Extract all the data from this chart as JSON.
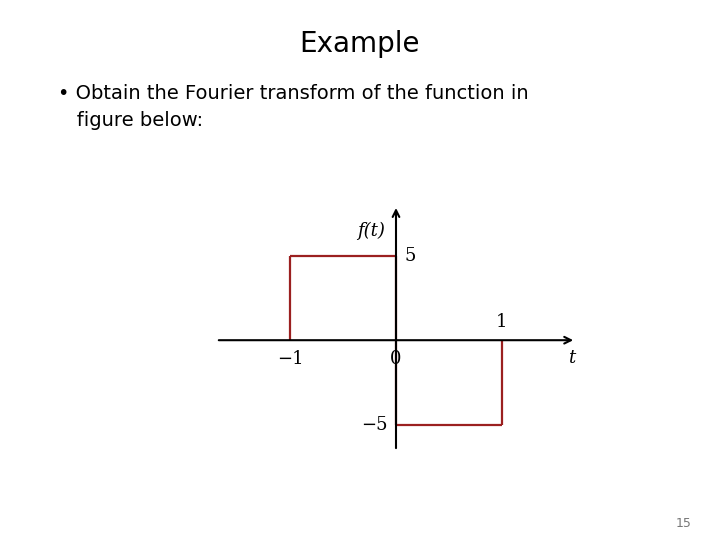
{
  "title": "Example",
  "bullet_line1": "• Obtain the Fourier transform of the function in",
  "bullet_line2": "   figure below:",
  "background_color": "#ffffff",
  "line_color": "#9b2020",
  "axis_color": "#000000",
  "page_number": "15",
  "xlim": [
    -1.7,
    1.7
  ],
  "ylim": [
    -8.0,
    8.0
  ],
  "x_label": "t",
  "y_label": "f(t)",
  "title_fontsize": 20,
  "text_fontsize": 14,
  "tick_fontsize": 13,
  "label_fontsize": 13
}
